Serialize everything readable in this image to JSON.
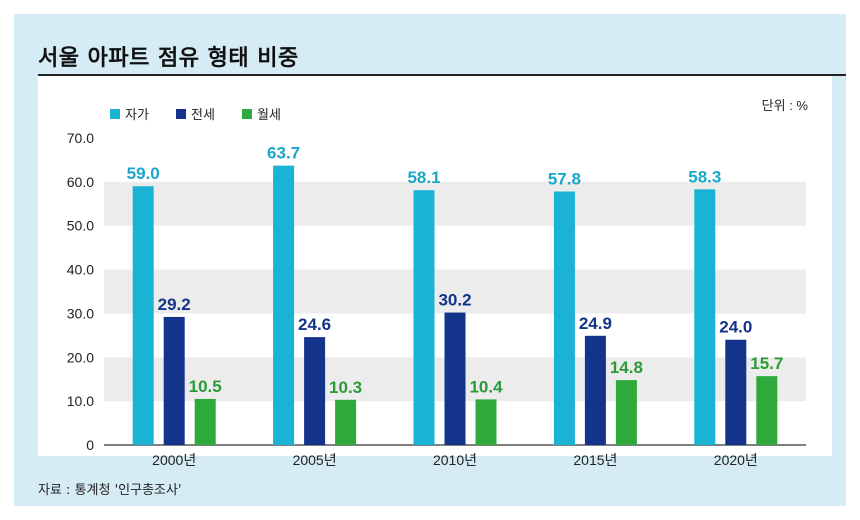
{
  "chart_data": {
    "type": "bar",
    "title": "서울 아파트 점유 형태 비중",
    "unit_label": "단위 : %",
    "categories": [
      "2000년",
      "2005년",
      "2010년",
      "2015년",
      "2020년"
    ],
    "series": [
      {
        "name": "자가",
        "color": "#1ab3d4",
        "label_color": "#1aa7c9",
        "values": [
          59.0,
          63.7,
          58.1,
          57.8,
          58.3
        ]
      },
      {
        "name": "전세",
        "color": "#13348a",
        "label_color": "#13348a",
        "values": [
          29.2,
          24.6,
          30.2,
          24.9,
          24.0
        ]
      },
      {
        "name": "월세",
        "color": "#2eaa3c",
        "label_color": "#2c9a37",
        "values": [
          10.5,
          10.3,
          10.4,
          14.8,
          15.7
        ]
      }
    ],
    "ylim": [
      0,
      70
    ],
    "yticks": [
      "0",
      "10.0",
      "20.0",
      "30.0",
      "40.0",
      "50.0",
      "60.0",
      "70.0"
    ],
    "legend_position": "top-left",
    "grid": "alternating bands"
  },
  "source": "자료 : 통계청 '인구총조사'"
}
